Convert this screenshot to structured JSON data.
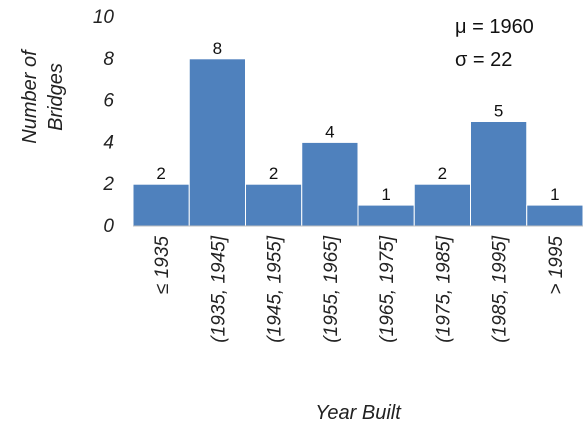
{
  "chart_data": {
    "type": "bar",
    "categories": [
      "≤ 1935",
      "(1935, 1945]",
      "(1945, 1955]",
      "(1955, 1965]",
      "(1965, 1975]",
      "(1975, 1985]",
      "(1985, 1995]",
      "> 1995"
    ],
    "values": [
      2,
      8,
      2,
      4,
      1,
      2,
      5,
      1
    ],
    "xlabel": "Year Built",
    "ylabel_lines": [
      "Number of",
      "Bridges"
    ],
    "ylim": [
      0,
      10
    ],
    "yticks": [
      0,
      2,
      4,
      6,
      8,
      10
    ],
    "grid": false,
    "bar_color": "#4f81bd",
    "annotations": [
      "μ = 1960",
      "σ = 22"
    ]
  }
}
